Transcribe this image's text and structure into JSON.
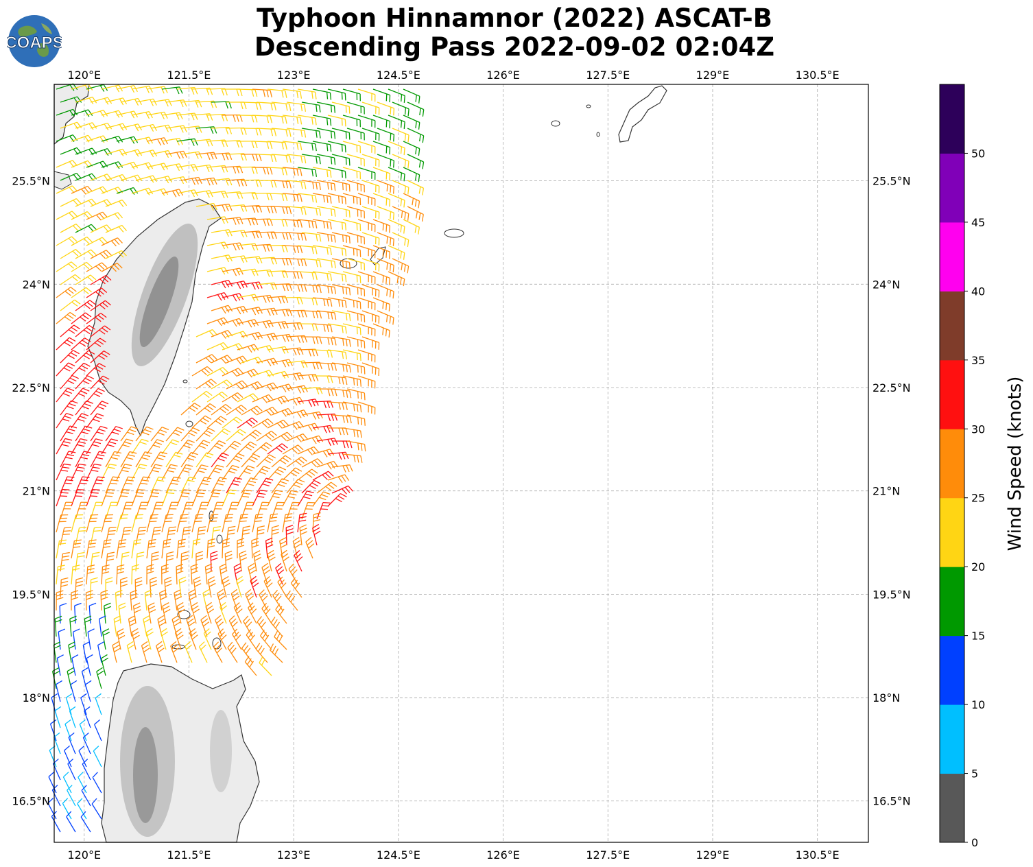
{
  "title_line1": "Typhoon Hinnamnor (2022) ASCAT-B",
  "title_line2": "Descending Pass 2022-09-02 02:04Z",
  "logo": {
    "text": "COAPS",
    "icon": "globe-icon"
  },
  "map": {
    "lon_range": [
      119.57,
      131.23
    ],
    "lat_range": [
      15.9,
      26.9
    ],
    "lon_ticks": [
      "120°E",
      "121.5°E",
      "123°E",
      "124.5°E",
      "126°E",
      "127.5°E",
      "129°E",
      "130.5°E"
    ],
    "lon_tick_values": [
      120,
      121.5,
      123,
      124.5,
      126,
      127.5,
      129,
      130.5
    ],
    "lat_ticks": [
      "16.5°N",
      "18°N",
      "19.5°N",
      "21°N",
      "22.5°N",
      "24°N",
      "25.5°N"
    ],
    "lat_tick_values": [
      16.5,
      18,
      19.5,
      21,
      22.5,
      24,
      25.5
    ],
    "gridlines": true,
    "land_color": "#ffffff",
    "coast_color": "#333333"
  },
  "colorbar": {
    "label": "Wind Speed (knots)",
    "ticks": [
      "0",
      "5",
      "10",
      "15",
      "20",
      "25",
      "30",
      "35",
      "40",
      "45",
      "50"
    ],
    "bins": [
      {
        "min": 0,
        "max": 5,
        "color": "#585858"
      },
      {
        "min": 5,
        "max": 10,
        "color": "#00bfff"
      },
      {
        "min": 10,
        "max": 15,
        "color": "#0040ff"
      },
      {
        "min": 15,
        "max": 20,
        "color": "#009900"
      },
      {
        "min": 20,
        "max": 25,
        "color": "#ffd514"
      },
      {
        "min": 25,
        "max": 30,
        "color": "#ff8c0a"
      },
      {
        "min": 30,
        "max": 35,
        "color": "#ff1010"
      },
      {
        "min": 35,
        "max": 40,
        "color": "#7f3c2a"
      },
      {
        "min": 40,
        "max": 45,
        "color": "#ff00ef"
      },
      {
        "min": 45,
        "max": 50,
        "color": "#8000b8"
      },
      {
        "min": 50,
        "max": 55,
        "color": "#2d005a"
      }
    ]
  }
}
